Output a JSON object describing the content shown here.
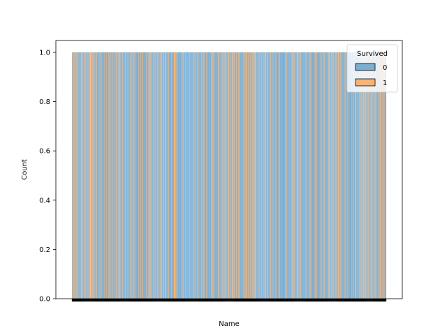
{
  "chart_data": {
    "type": "bar",
    "xlabel": "Name",
    "ylabel": "Count",
    "ylim": [
      0,
      1.0
    ],
    "yticks": [
      "0.0",
      "0.2",
      "0.4",
      "0.6",
      "0.8",
      "1.0"
    ],
    "ytick_values": [
      0,
      0.2,
      0.4,
      0.6,
      0.8,
      1.0
    ],
    "legend": {
      "title": "Survived",
      "placement": "top-right",
      "entries": [
        {
          "label": "0",
          "color": "#1f77b4"
        },
        {
          "label": "1",
          "color": "#ff7f0e"
        }
      ]
    },
    "series": [
      {
        "name": "0",
        "color": "#1f77b4",
        "alpha": 0.55
      },
      {
        "name": "1",
        "color": "#ff7f0e",
        "alpha": 0.55
      }
    ],
    "category_count": 891,
    "value_per_category": 1,
    "pattern": "0101100111001010010000100011001000100101000001001001110010101001000011000000010010010000100100000100000101000010000100000100010010001001100000010000000100000010000001000100100110010000000010001001001100000000000100000110010110000001010001000010100000011010001010001110000010100000001001000111110010010000000001000011000001000000000001000000000010100100000010100000000100100101000001001000000100011101100100000000001010000001000101000101100000011000100000110100100000100000110010000010001101001101100011000011000101010101100000010000100001000001001011000110000001010001001000000101000000110100100000000000101001000000000000011000101000000011010001001000000000000010010000001100101000000001001100100000000100001000010100000000000101100001010010100001010000110000101000000000100101000100010000000100110000110100001000101001100"
  }
}
